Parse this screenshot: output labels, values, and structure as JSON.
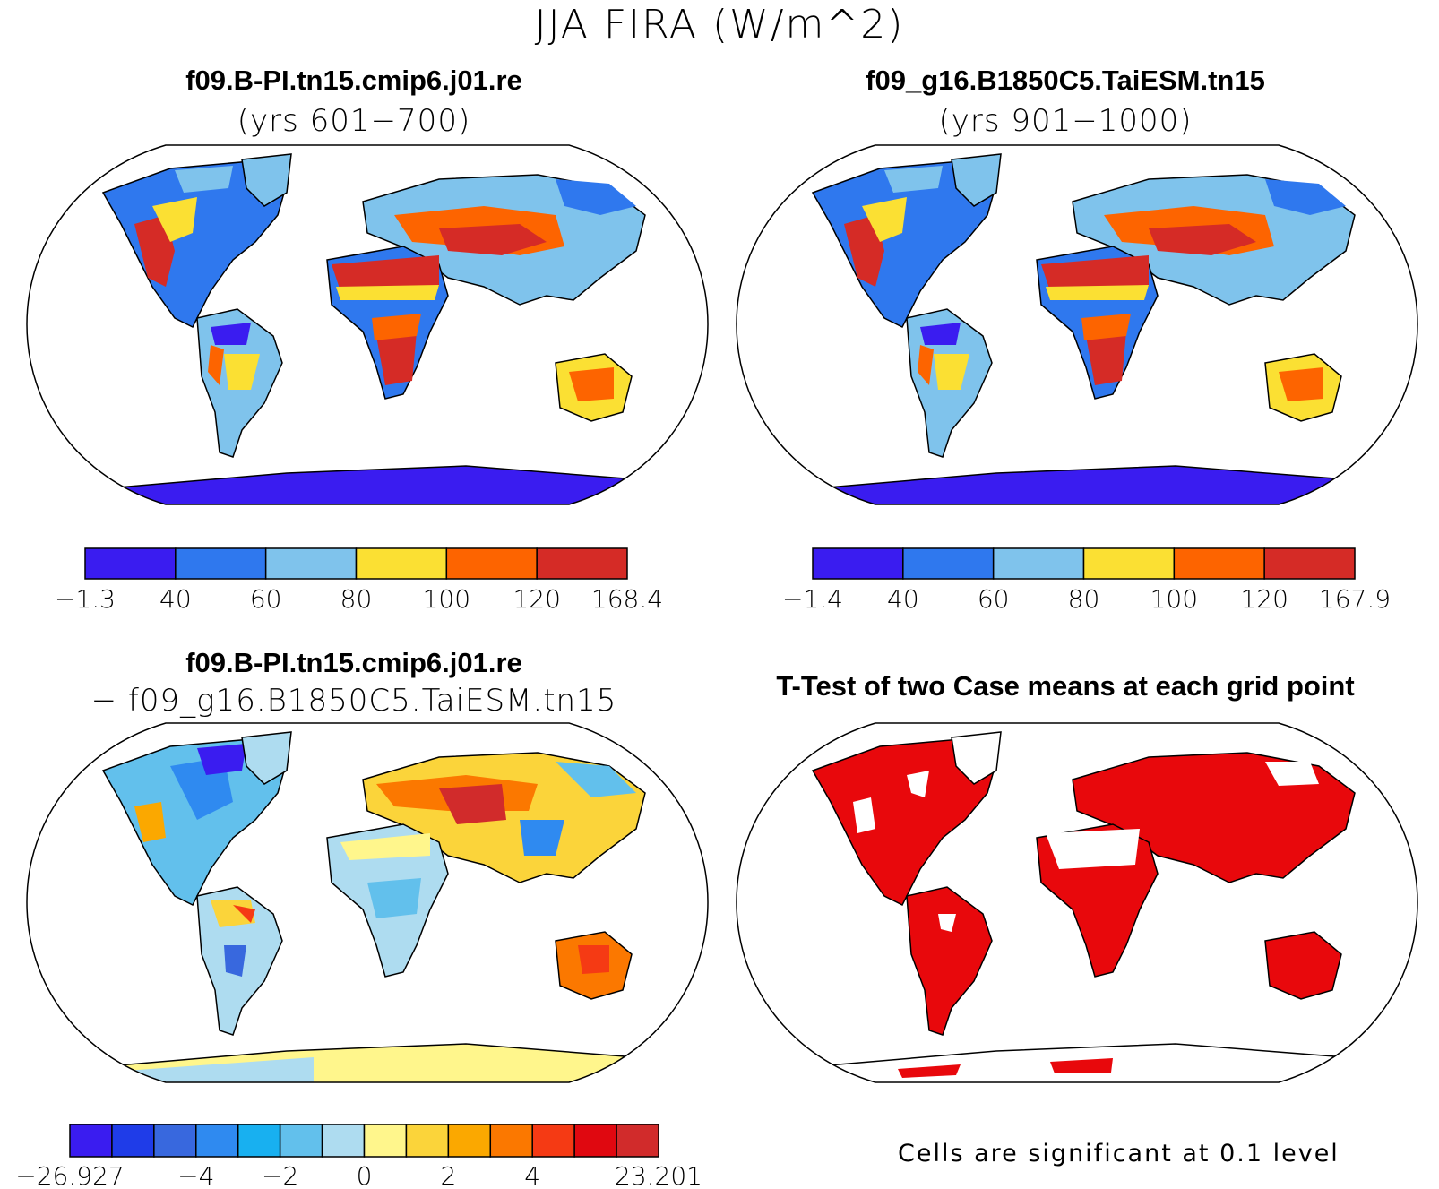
{
  "title": "JJA FIRA (W/m^2)",
  "panels": [
    {
      "line1": "f09.B-PI.tn15.cmip6.j01.re",
      "line2": "(yrs 601−700)",
      "colorbar": {
        "colors": [
          "#3a1cf0",
          "#2f78ee",
          "#7fc3ec",
          "#fbe033",
          "#fd6400",
          "#d52b26"
        ],
        "labels": [
          "−1.3",
          "40",
          "60",
          "80",
          "100",
          "120",
          "168.4"
        ]
      }
    },
    {
      "line1": "f09_g16.B1850C5.TaiESM.tn15",
      "line2": "(yrs 901−1000)",
      "colorbar": {
        "colors": [
          "#3a1cf0",
          "#2f78ee",
          "#7fc3ec",
          "#fbe033",
          "#fd6400",
          "#d52b26"
        ],
        "labels": [
          "−1.4",
          "40",
          "60",
          "80",
          "100",
          "120",
          "167.9"
        ]
      }
    },
    {
      "line1": "f09.B-PI.tn15.cmip6.j01.re",
      "line2": "− f09_g16.B1850C5.TaiESM.tn15",
      "colorbar": {
        "colors": [
          "#3a1cf0",
          "#1f3ce8",
          "#3868de",
          "#2f8af0",
          "#18b0f0",
          "#62c0ec",
          "#aedcf0",
          "#fff68c",
          "#fbd43a",
          "#fba800",
          "#fb7800",
          "#f53a14",
          "#e00810",
          "#d12b2b"
        ],
        "labels": [
          "−26.927",
          "−4",
          "−2",
          "0",
          "2",
          "4",
          "23.201"
        ]
      }
    },
    {
      "line1": "T-Test of two Case means at each grid point"
    }
  ],
  "footnote": "Cells are significant at 0.1 level"
}
